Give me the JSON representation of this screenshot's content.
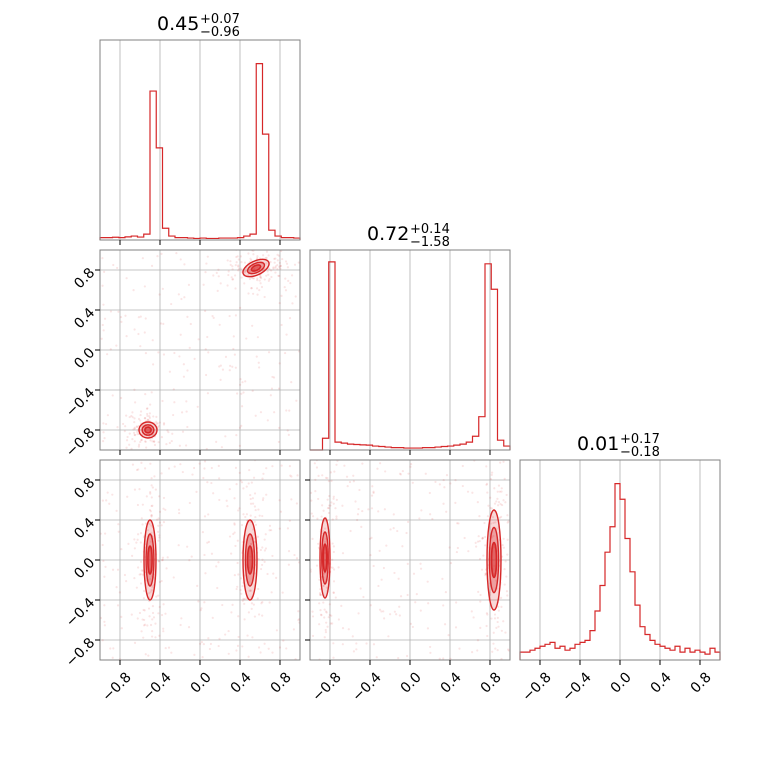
{
  "figure": {
    "color": "#d62728",
    "grid": true
  },
  "chart_data": {
    "type": "corner",
    "parameters": [
      "",
      "",
      ""
    ],
    "axis_range": [
      -1.0,
      1.0
    ],
    "ticks": [
      -0.8,
      -0.4,
      0.0,
      0.4,
      0.8
    ],
    "tick_labels": [
      "−0.8",
      "−0.4",
      "0.0",
      "0.4",
      "0.8"
    ],
    "titles": [
      {
        "value": "0.45",
        "plus": "+0.07",
        "minus": "−0.96"
      },
      {
        "value": "0.72",
        "plus": "+0.14",
        "minus": "−1.58"
      },
      {
        "value": "0.01",
        "plus": "+0.17",
        "minus": "−0.18"
      }
    ],
    "histograms": [
      {
        "parameter_index": 0,
        "bin_edges_range": [
          -1.0,
          1.0
        ],
        "counts": [
          0.012,
          0.012,
          0.014,
          0.012,
          0.016,
          0.02,
          0.015,
          0.03,
          0.76,
          0.47,
          0.06,
          0.02,
          0.012,
          0.012,
          0.01,
          0.008,
          0.01,
          0.008,
          0.008,
          0.01,
          0.01,
          0.01,
          0.012,
          0.02,
          0.03,
          0.9,
          0.54,
          0.05,
          0.02,
          0.012,
          0.012,
          0.01
        ]
      },
      {
        "parameter_index": 1,
        "bin_edges_range": [
          -1.0,
          1.0
        ],
        "counts": [
          0.0,
          0.0,
          0.06,
          0.96,
          0.04,
          0.035,
          0.03,
          0.028,
          0.026,
          0.025,
          0.02,
          0.018,
          0.015,
          0.012,
          0.012,
          0.01,
          0.01,
          0.01,
          0.012,
          0.012,
          0.015,
          0.018,
          0.02,
          0.025,
          0.03,
          0.04,
          0.07,
          0.17,
          0.95,
          0.82,
          0.05,
          0.02
        ]
      },
      {
        "parameter_index": 2,
        "bin_edges_range": [
          -1.0,
          1.0
        ],
        "counts": [
          0.04,
          0.04,
          0.05,
          0.06,
          0.07,
          0.08,
          0.09,
          0.06,
          0.07,
          0.05,
          0.06,
          0.08,
          0.09,
          0.1,
          0.15,
          0.25,
          0.38,
          0.55,
          0.68,
          0.9,
          0.82,
          0.62,
          0.45,
          0.28,
          0.17,
          0.13,
          0.1,
          0.08,
          0.07,
          0.06,
          0.05,
          0.07,
          0.04,
          0.06,
          0.04,
          0.05,
          0.04,
          0.03,
          0.06,
          0.04
        ]
      }
    ],
    "pair_plots": [
      {
        "x_param": 0,
        "y_param": 1,
        "blobs": [
          {
            "cx": 0.56,
            "cy": 0.82,
            "sx": 0.07,
            "sy": 0.035,
            "rot": -25
          },
          {
            "cx": -0.52,
            "cy": -0.8,
            "sx": 0.045,
            "sy": 0.04,
            "rot": 0
          }
        ],
        "scatter_points": 450
      },
      {
        "x_param": 0,
        "y_param": 2,
        "blobs": [
          {
            "cx": -0.5,
            "cy": 0.0,
            "sx": 0.03,
            "sy": 0.2,
            "rot": 0
          },
          {
            "cx": 0.5,
            "cy": 0.0,
            "sx": 0.035,
            "sy": 0.2,
            "rot": 0
          }
        ],
        "scatter_points": 450
      },
      {
        "x_param": 1,
        "y_param": 2,
        "blobs": [
          {
            "cx": -0.85,
            "cy": 0.02,
            "sx": 0.025,
            "sy": 0.2,
            "rot": 0
          },
          {
            "cx": 0.84,
            "cy": 0.0,
            "sx": 0.035,
            "sy": 0.25,
            "rot": 0
          }
        ],
        "scatter_points": 450
      }
    ]
  }
}
